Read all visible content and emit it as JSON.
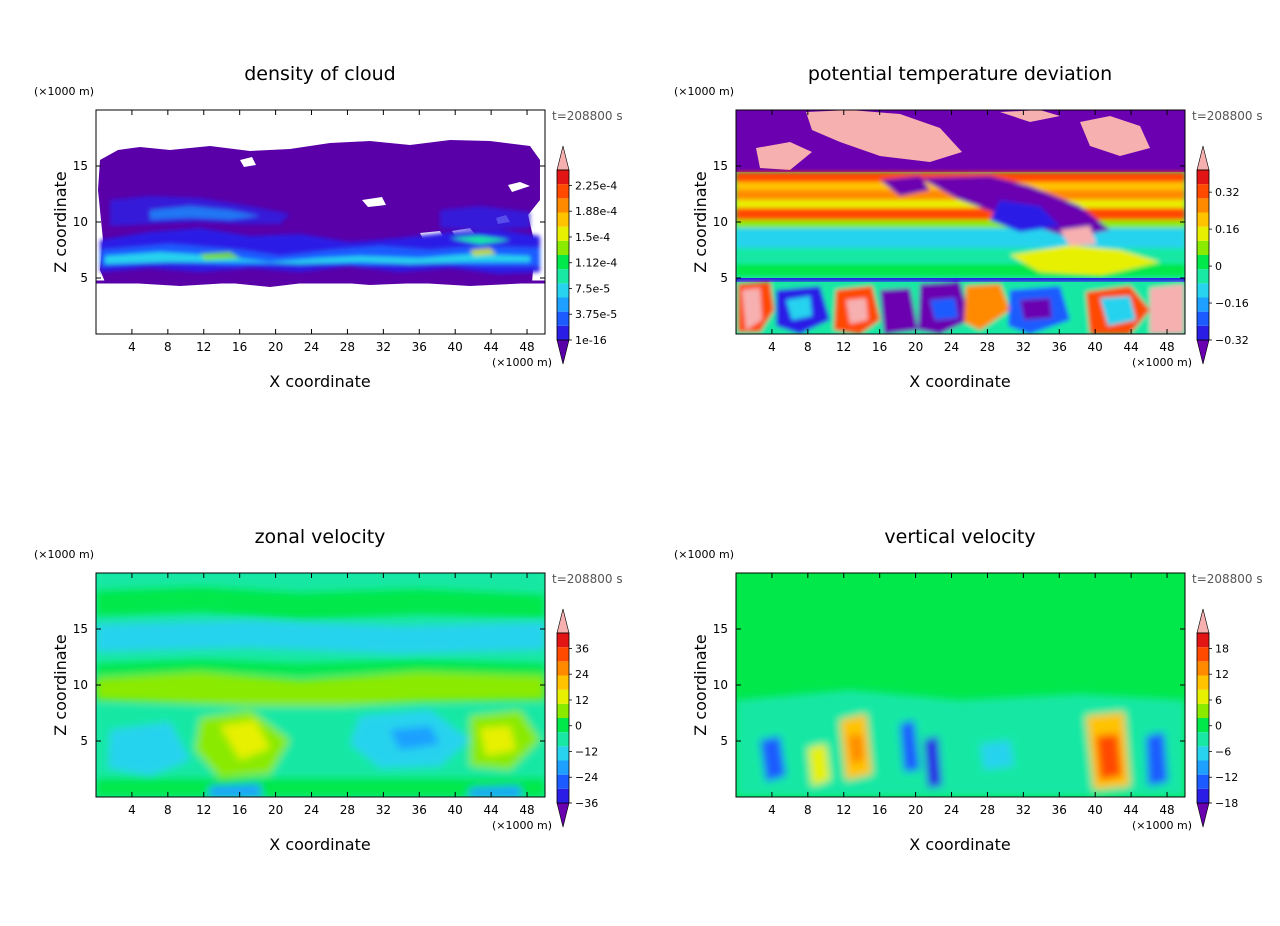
{
  "chart_data": [
    {
      "type": "heatmap",
      "title": "density of cloud",
      "xlabel": "X coordinate",
      "ylabel": "Z coordinate",
      "x_unit": "(×1000 m)",
      "y_unit": "(×1000 m)",
      "time_label": "t=208800 s",
      "xlim": [
        0,
        50
      ],
      "ylim": [
        0,
        20
      ],
      "x_ticks": [
        "4",
        "8",
        "12",
        "16",
        "20",
        "24",
        "28",
        "32",
        "36",
        "40",
        "44",
        "48"
      ],
      "y_ticks": [
        "5",
        "10",
        "15"
      ],
      "colorbar_labels": [
        "1e-16",
        "3.75e-5",
        "7.5e-5",
        "1.12e-4",
        "1.5e-4",
        "1.88e-4",
        "2.25e-4"
      ],
      "colorbar_colors": [
        "#5a00a8",
        "#2a1ee6",
        "#1c5bff",
        "#1da0ff",
        "#27d3ee",
        "#19e8a4",
        "#00e84a",
        "#8aea00",
        "#e7f000",
        "#ffc300",
        "#ff8a00",
        "#ff4a00",
        "#e21414",
        "#f7b0b0"
      ]
    },
    {
      "type": "heatmap",
      "title": "potential temperature deviation",
      "xlabel": "X coordinate",
      "ylabel": "Z coordinate",
      "x_unit": "(×1000 m)",
      "y_unit": "(×1000 m)",
      "time_label": "t=208800 s",
      "xlim": [
        0,
        50
      ],
      "ylim": [
        0,
        20
      ],
      "x_ticks": [
        "4",
        "8",
        "12",
        "16",
        "20",
        "24",
        "28",
        "32",
        "36",
        "40",
        "44",
        "48"
      ],
      "y_ticks": [
        "5",
        "10",
        "15"
      ],
      "colorbar_labels": [
        "−0.32",
        "−0.16",
        "0",
        "0.16",
        "0.32"
      ],
      "colorbar_colors": [
        "#6a00b0",
        "#2a1ee6",
        "#1c5bff",
        "#1da0ff",
        "#27d3ee",
        "#19e8a4",
        "#00e84a",
        "#8aea00",
        "#e7f000",
        "#ffc300",
        "#ff8a00",
        "#ff4a00",
        "#e21414",
        "#f7b0b0"
      ]
    },
    {
      "type": "heatmap",
      "title": "zonal velocity",
      "xlabel": "X coordinate",
      "ylabel": "Z coordinate",
      "x_unit": "(×1000 m)",
      "y_unit": "(×1000 m)",
      "time_label": "t=208800 s",
      "xlim": [
        0,
        50
      ],
      "ylim": [
        0,
        20
      ],
      "x_ticks": [
        "4",
        "8",
        "12",
        "16",
        "20",
        "24",
        "28",
        "32",
        "36",
        "40",
        "44",
        "48"
      ],
      "y_ticks": [
        "5",
        "10",
        "15"
      ],
      "colorbar_labels": [
        "−36",
        "−24",
        "−12",
        "0",
        "12",
        "24",
        "36"
      ],
      "colorbar_colors": [
        "#6a00b0",
        "#2a1ee6",
        "#1c5bff",
        "#1da0ff",
        "#27d3ee",
        "#19e8a4",
        "#00e84a",
        "#8aea00",
        "#e7f000",
        "#ffc300",
        "#ff8a00",
        "#ff4a00",
        "#e21414",
        "#f7b0b0"
      ]
    },
    {
      "type": "heatmap",
      "title": "vertical velocity",
      "xlabel": "X coordinate",
      "ylabel": "Z coordinate",
      "x_unit": "(×1000 m)",
      "y_unit": "(×1000 m)",
      "time_label": "t=208800 s",
      "xlim": [
        0,
        50
      ],
      "ylim": [
        0,
        20
      ],
      "x_ticks": [
        "4",
        "8",
        "12",
        "16",
        "20",
        "24",
        "28",
        "32",
        "36",
        "40",
        "44",
        "48"
      ],
      "y_ticks": [
        "5",
        "10",
        "15"
      ],
      "colorbar_labels": [
        "−18",
        "−12",
        "−6",
        "0",
        "6",
        "12",
        "18"
      ],
      "colorbar_colors": [
        "#6a00b0",
        "#2a1ee6",
        "#1c5bff",
        "#1da0ff",
        "#27d3ee",
        "#19e8a4",
        "#00e84a",
        "#8aea00",
        "#e7f000",
        "#ffc300",
        "#ff8a00",
        "#ff4a00",
        "#e21414",
        "#f7b0b0"
      ]
    }
  ]
}
